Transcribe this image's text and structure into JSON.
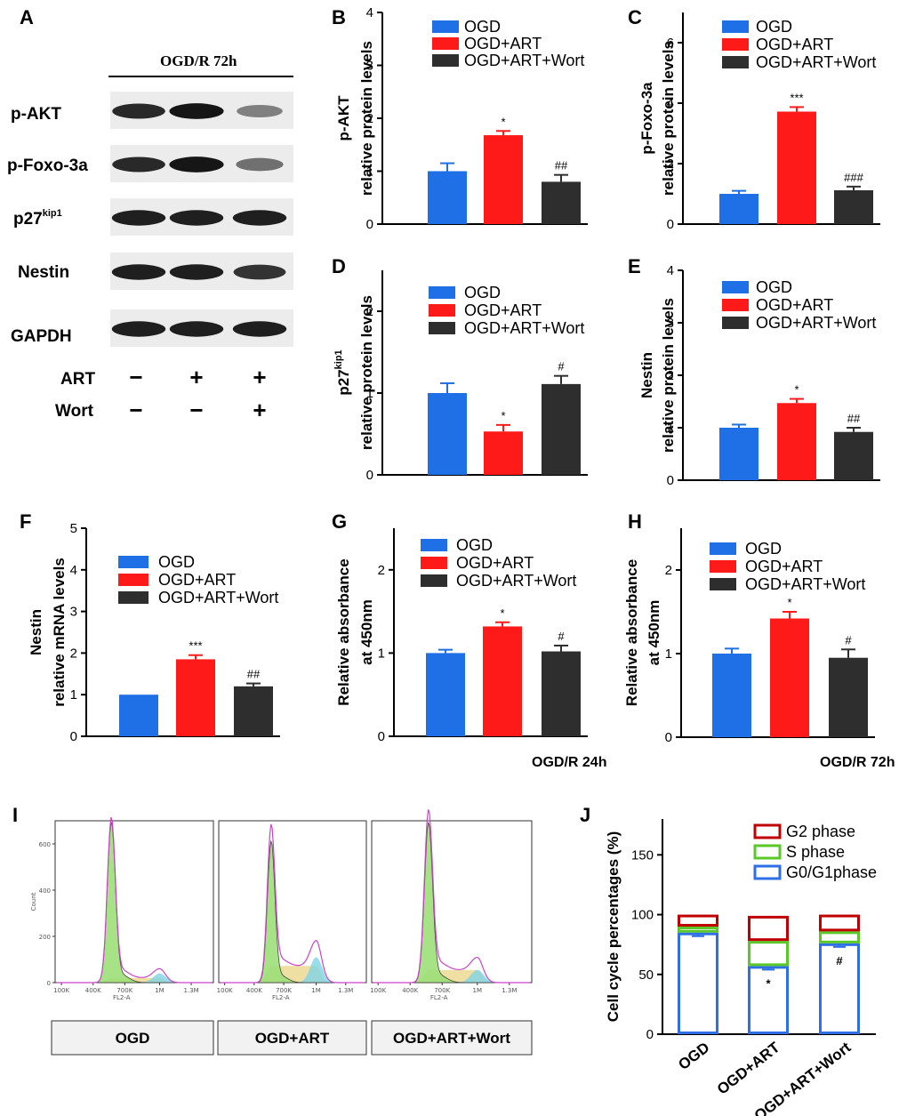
{
  "figure": {
    "colors": {
      "ogd": "#1f6fe6",
      "art": "#ff1a1a",
      "wort": "#2e2e2e",
      "g2": "#c00000",
      "s": "#5ac828",
      "g0g1": "#2e6fe6"
    },
    "panel_letters": [
      "A",
      "B",
      "C",
      "D",
      "E",
      "F",
      "G",
      "H",
      "I",
      "J"
    ]
  },
  "western_blot": {
    "title": "OGD/R 72h",
    "rows": [
      "p-AKT",
      "p-Foxo-3a",
      "p27",
      "Nestin",
      "GAPDH"
    ],
    "p27_superscript": "kip1",
    "treatments": [
      {
        "name": "ART",
        "signs": [
          "−",
          "+",
          "+"
        ]
      },
      {
        "name": "Wort",
        "signs": [
          "−",
          "−",
          "+"
        ]
      }
    ],
    "band_intensities": [
      [
        0.85,
        0.95,
        0.35
      ],
      [
        0.85,
        0.95,
        0.45
      ],
      [
        0.9,
        0.9,
        0.9
      ],
      [
        0.9,
        0.9,
        0.8
      ],
      [
        0.9,
        0.9,
        0.9
      ]
    ]
  },
  "chart_data": [
    {
      "panel": "B",
      "type": "bar",
      "categories": [
        "OGD",
        "OGD+ART",
        "OGD+ART+Wort"
      ],
      "legend": [
        "OGD",
        "OGD+ART",
        "OGD+ART+Wort"
      ],
      "values": [
        1.0,
        1.68,
        0.8
      ],
      "errors": [
        0.15,
        0.08,
        0.13
      ],
      "sig": [
        "",
        "*",
        "##"
      ],
      "ylabel": [
        "p-AKT",
        "relative protein levels"
      ],
      "ylim": [
        0,
        4
      ],
      "yticks": [
        0,
        1,
        2,
        3,
        4
      ],
      "note": ""
    },
    {
      "panel": "C",
      "type": "bar",
      "categories": [
        "OGD",
        "OGD+ART",
        "OGD+ART+Wort"
      ],
      "legend": [
        "OGD",
        "OGD+ART",
        "OGD+ART+Wort"
      ],
      "values": [
        1.0,
        3.72,
        1.12
      ],
      "errors": [
        0.1,
        0.15,
        0.12
      ],
      "sig": [
        "",
        "***",
        "###"
      ],
      "ylabel": [
        "p-Foxo-3a",
        "relative protein levels"
      ],
      "ylim": [
        0,
        7
      ],
      "yticks": [
        0,
        2,
        4,
        6
      ],
      "note": ""
    },
    {
      "panel": "D",
      "type": "bar",
      "categories": [
        "OGD",
        "OGD+ART",
        "OGD+ART+Wort"
      ],
      "legend": [
        "OGD",
        "OGD+ART",
        "OGD+ART+Wort"
      ],
      "values": [
        1.0,
        0.53,
        1.11
      ],
      "errors": [
        0.12,
        0.08,
        0.1
      ],
      "sig": [
        "",
        "*",
        "#"
      ],
      "ylabel": [
        "p27kip1",
        "relative protein levels"
      ],
      "ylim": [
        0,
        2.5
      ],
      "yticks": [
        0,
        1,
        2
      ],
      "note": ""
    },
    {
      "panel": "E",
      "type": "bar",
      "categories": [
        "OGD",
        "OGD+ART",
        "OGD+ART+Wort"
      ],
      "legend": [
        "OGD",
        "OGD+ART",
        "OGD+ART+Wort"
      ],
      "values": [
        1.0,
        1.47,
        0.92
      ],
      "errors": [
        0.06,
        0.08,
        0.08
      ],
      "sig": [
        "",
        "*",
        "##"
      ],
      "ylabel": [
        "Nestin",
        "relative protein levels"
      ],
      "ylim": [
        0,
        4
      ],
      "yticks": [
        0,
        1,
        2,
        3,
        4
      ],
      "note": ""
    },
    {
      "panel": "F",
      "type": "bar",
      "categories": [
        "OGD",
        "OGD+ART",
        "OGD+ART+Wort"
      ],
      "legend": [
        "OGD",
        "OGD+ART",
        "OGD+ART+Wort"
      ],
      "values": [
        1.0,
        1.85,
        1.2
      ],
      "errors": [
        0.0,
        0.1,
        0.07
      ],
      "sig": [
        "",
        "***",
        "##"
      ],
      "ylabel": [
        "Nestin",
        "relative mRNA levels"
      ],
      "ylim": [
        0,
        5
      ],
      "yticks": [
        0,
        1,
        2,
        3,
        4,
        5
      ],
      "note": ""
    },
    {
      "panel": "G",
      "type": "bar",
      "categories": [
        "OGD",
        "OGD+ART",
        "OGD+ART+Wort"
      ],
      "legend": [
        "OGD",
        "OGD+ART",
        "OGD+ART+Wort"
      ],
      "values": [
        1.0,
        1.32,
        1.02
      ],
      "errors": [
        0.04,
        0.05,
        0.07
      ],
      "sig": [
        "",
        "*",
        "#"
      ],
      "ylabel": [
        "Relative absorbance",
        "at 450nm"
      ],
      "ylim": [
        0,
        2.5
      ],
      "yticks": [
        0,
        1,
        2
      ],
      "note": "OGD/R 24h"
    },
    {
      "panel": "H",
      "type": "bar",
      "categories": [
        "OGD",
        "OGD+ART",
        "OGD+ART+Wort"
      ],
      "legend": [
        "OGD",
        "OGD+ART",
        "OGD+ART+Wort"
      ],
      "values": [
        1.0,
        1.42,
        0.95
      ],
      "errors": [
        0.06,
        0.08,
        0.1
      ],
      "sig": [
        "",
        "*",
        "#"
      ],
      "ylabel": [
        "Relative absorbance",
        "at 450nm"
      ],
      "ylim": [
        0,
        2.5
      ],
      "yticks": [
        0,
        1,
        2
      ],
      "note": "OGD/R 72h"
    },
    {
      "panel": "I",
      "type": "histogram",
      "samples": [
        "OGD",
        "OGD+ART",
        "OGD+ART+Wort"
      ],
      "xticks": [
        "100K",
        "400K",
        "700K",
        "1M",
        "1.3M"
      ],
      "xlabel": "FL2-A",
      "ylabel": "Count",
      "yticks": [
        0,
        200,
        400,
        600
      ],
      "g1_peak_counts": [
        680,
        600,
        680
      ],
      "s_phase_level": [
        0.03,
        0.12,
        0.08
      ],
      "g2_peak_counts": [
        40,
        110,
        55
      ]
    },
    {
      "panel": "J",
      "type": "stacked_bar",
      "categories": [
        "OGD",
        "OGD+ART",
        "OGD+ART+Wort"
      ],
      "series": [
        {
          "name": "G0/G1phase",
          "values": [
            85,
            57,
            76
          ],
          "errors": [
            3,
            3,
            3
          ]
        },
        {
          "name": "S phase",
          "values": [
            5,
            21,
            10
          ],
          "errors": [
            0,
            0,
            0
          ]
        },
        {
          "name": "G2 phase",
          "values": [
            10,
            21,
            14
          ],
          "errors": [
            0,
            1,
            0
          ]
        }
      ],
      "legend": [
        "G2 phase",
        "S phase",
        "G0/G1phase"
      ],
      "sig": [
        "",
        "*",
        "#"
      ],
      "ylabel": "Cell cycle percentages (%)",
      "ylim": [
        0,
        180
      ],
      "yticks": [
        0,
        50,
        100,
        150
      ]
    }
  ]
}
